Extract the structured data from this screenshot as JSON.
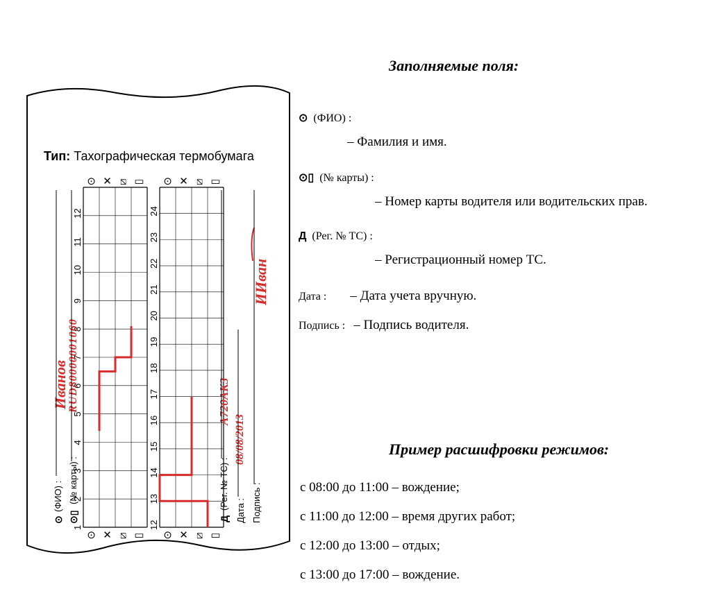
{
  "headings": {
    "fields_title": "Заполняемые поля:",
    "modes_title": "Пример расшифровки режимов:"
  },
  "paper": {
    "type_label": "Тип:",
    "type_value": "Тахографическая термобумага",
    "fio_label": "(ФИО) :",
    "card_label": "(№ карты) :",
    "reg_label": "(Рег. № ТС) :",
    "date_label": "Дата :",
    "sign_label": "Подпись :",
    "fio_value": "Иванов",
    "card_value": "RUD80000001060",
    "reg_value": "А720АК3",
    "date_value": "08/08/2013",
    "sign_value": "ИИван",
    "scale1": [
      "1",
      "2",
      "3",
      "4",
      "5",
      "6",
      "7",
      "8",
      "9",
      "10",
      "11",
      "12"
    ],
    "scale2": [
      "12",
      "13",
      "14",
      "15",
      "16",
      "17",
      "18",
      "19",
      "20",
      "21",
      "22",
      "23",
      "24"
    ],
    "chart1": {
      "type": "step-line",
      "points": [
        [
          3.4,
          1
        ],
        [
          5.5,
          1
        ],
        [
          5.5,
          2
        ],
        [
          6,
          2
        ],
        [
          6,
          3
        ],
        [
          7.1,
          3
        ]
      ]
    },
    "chart2": {
      "type": "step-line",
      "points": [
        [
          0,
          3
        ],
        [
          1,
          3
        ],
        [
          1,
          0
        ],
        [
          2,
          0
        ],
        [
          2,
          2
        ],
        [
          5,
          2
        ]
      ]
    }
  },
  "fields": {
    "fio_lbl": "(ФИО) :",
    "fio_desc": "– Фамилия и имя.",
    "card_lbl": "(№ карты) :",
    "card_desc": "– Номер карты водителя или водительских прав.",
    "reg_lbl": "(Рег. № ТС) :",
    "reg_desc": "– Регистрационный номер ТС.",
    "date_lbl": "Дата :",
    "date_desc": "– Дата учета вручную.",
    "sign_lbl": "Подпись :",
    "sign_desc": "– Подпись водителя."
  },
  "modes": {
    "m1": "с 08:00 до 11:00 – вождение;",
    "m2": "с 11:00 до 12:00 – время других работ;",
    "m3": "с 12:00 до 13:00 – отдых;",
    "m4": "с 13:00 до 17:00 – вождение."
  },
  "style": {
    "accent_red": "#d62c2c",
    "grid_color": "#000000",
    "background": "#ffffff",
    "line_width_chart": 3,
    "grid_stroke": 0.6,
    "paper_w": 380,
    "paper_h": 685,
    "title_fontsize": 22,
    "body_fontsize": 19,
    "label_fontsize": 14,
    "cell": 23
  }
}
